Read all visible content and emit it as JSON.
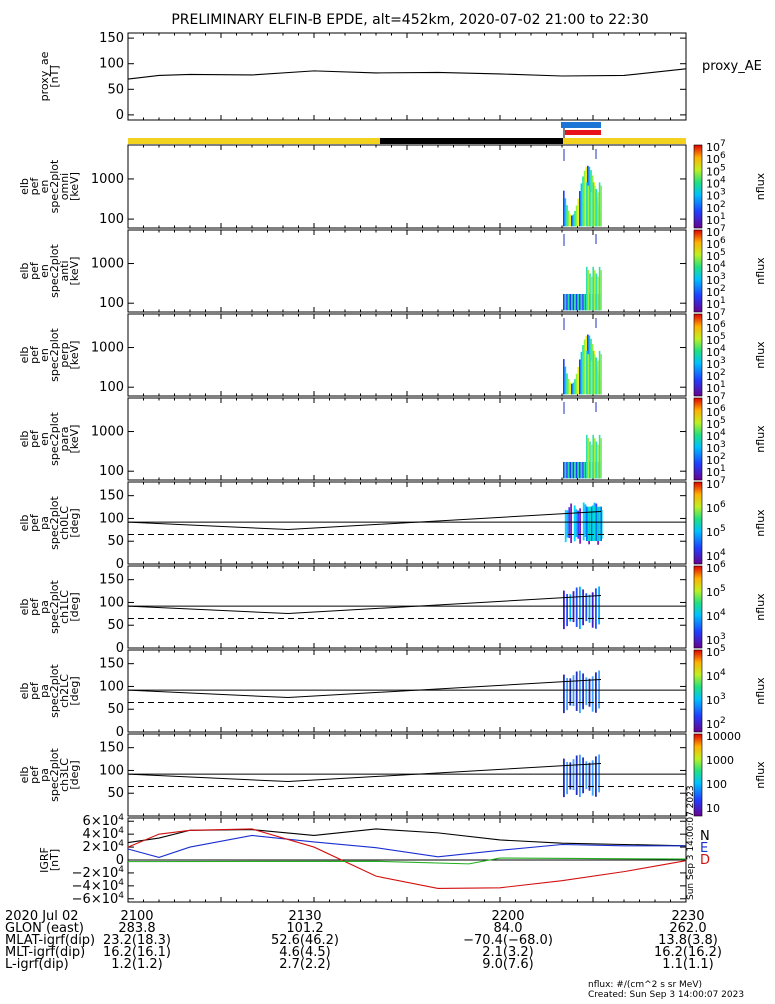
{
  "title": "PRELIMINARY ELFIN-B EPDE, alt=452km, 2020-07-02 21:00 to 22:30",
  "colors": {
    "yellow": "#f2d21e",
    "black": "#000000",
    "blue": "#1c74d4",
    "red": "#e8121a",
    "trace_red": "#d21010",
    "trace_blue": "#1a2fd0",
    "trace_green": "#22b020"
  },
  "chart_data": [
    {
      "type": "line",
      "panel": "proxy_ae",
      "ylabel": [
        "proxy_ae",
        "[nT]"
      ],
      "legend": "proxy_AE",
      "yticks": [
        "150",
        "100",
        "50",
        "0"
      ],
      "ylim": [
        -10,
        160
      ],
      "x": [
        0,
        5,
        10,
        20,
        30,
        40,
        50,
        60,
        70,
        80,
        90
      ],
      "values": [
        70,
        77,
        79,
        78,
        86,
        82,
        83,
        80,
        76,
        77,
        90
      ]
    },
    {
      "type": "heatmap",
      "panel": "en_omni",
      "ylabel": [
        "elb",
        "pef",
        "en",
        "spec2plot",
        "omni",
        "[keV]"
      ],
      "yticks": [
        "1000",
        "100"
      ],
      "yscale": "log",
      "ylim": [
        60,
        7000
      ],
      "colorbar": {
        "labels": [
          "10^7",
          "10^6",
          "10^5",
          "10^4",
          "10^3",
          "10^2",
          "10^1"
        ],
        "label": "nflux"
      }
    },
    {
      "type": "heatmap",
      "panel": "en_anti",
      "ylabel": [
        "elb",
        "pef",
        "en",
        "spec2plot",
        "anti",
        "[keV]"
      ],
      "yticks": [
        "1000",
        "100"
      ],
      "yscale": "log",
      "ylim": [
        60,
        7000
      ],
      "colorbar": {
        "labels": [
          "10^7",
          "10^6",
          "10^5",
          "10^4",
          "10^3",
          "10^2",
          "10^1"
        ],
        "label": "nflux"
      }
    },
    {
      "type": "heatmap",
      "panel": "en_perp",
      "ylabel": [
        "elb",
        "pef",
        "en",
        "spec2plot",
        "perp",
        "[keV]"
      ],
      "yticks": [
        "1000",
        "100"
      ],
      "yscale": "log",
      "ylim": [
        60,
        7000
      ],
      "colorbar": {
        "labels": [
          "10^7",
          "10^6",
          "10^5",
          "10^4",
          "10^3",
          "10^2",
          "10^1"
        ],
        "label": "nflux"
      }
    },
    {
      "type": "heatmap",
      "panel": "en_para",
      "ylabel": [
        "elb",
        "pef",
        "en",
        "spec2plot",
        "para",
        "[keV]"
      ],
      "yticks": [
        "1000",
        "100"
      ],
      "yscale": "log",
      "ylim": [
        60,
        7000
      ],
      "colorbar": {
        "labels": [
          "10^7",
          "10^6",
          "10^5",
          "10^4",
          "10^3",
          "10^2",
          "10^1"
        ],
        "label": "nflux"
      }
    },
    {
      "type": "heatmap",
      "panel": "pa_ch0",
      "ylabel": [
        "elb",
        "pef",
        "pa",
        "spec2plot",
        "ch0LC",
        "[deg]"
      ],
      "yticks": [
        "150",
        "100",
        "50",
        "0"
      ],
      "ylim": [
        0,
        180
      ],
      "colorbar": {
        "labels": [
          "10^7",
          "10^6",
          "10^5",
          "10^4"
        ],
        "label": "nflux"
      }
    },
    {
      "type": "heatmap",
      "panel": "pa_ch1",
      "ylabel": [
        "elb",
        "pef",
        "pa",
        "spec2plot",
        "ch1LC",
        "[deg]"
      ],
      "yticks": [
        "150",
        "100",
        "50",
        "0"
      ],
      "ylim": [
        0,
        180
      ],
      "colorbar": {
        "labels": [
          "10^6",
          "10^5",
          "10^4",
          "10^3"
        ],
        "label": "nflux"
      }
    },
    {
      "type": "heatmap",
      "panel": "pa_ch2",
      "ylabel": [
        "elb",
        "pef",
        "pa",
        "spec2plot",
        "ch2LC",
        "[deg]"
      ],
      "yticks": [
        "150",
        "100",
        "50",
        "0"
      ],
      "ylim": [
        0,
        180
      ],
      "colorbar": {
        "labels": [
          "10^5",
          "10^4",
          "10^3",
          "10^2"
        ],
        "label": "nflux"
      }
    },
    {
      "type": "heatmap",
      "panel": "pa_ch3",
      "ylabel": [
        "elb",
        "pef",
        "pa",
        "spec2plot",
        "ch3LC",
        "[deg]"
      ],
      "yticks": [
        "150",
        "100",
        "50"
      ],
      "ylim": [
        0,
        180
      ],
      "colorbar": {
        "labels": [
          "10000",
          "1000",
          "100",
          "10"
        ],
        "label": "nflux"
      }
    },
    {
      "type": "line",
      "panel": "igrf",
      "ylabel": [
        "IGRF",
        "[nT]"
      ],
      "yticks": [
        "6×10^4",
        "4×10^4",
        "2×10^4",
        "0",
        "−2×10^4",
        "−4×10^4",
        "−6×10^4"
      ],
      "ylim": [
        -65000,
        65000
      ],
      "legend": [
        "N",
        "E",
        "D"
      ],
      "x": [
        0,
        5,
        10,
        20,
        30,
        40,
        50,
        60,
        70,
        80,
        90
      ],
      "series": [
        {
          "name": "N",
          "values": [
            27000,
            34000,
            46000,
            47000,
            38000,
            48000,
            42000,
            31000,
            26000,
            24000,
            22000
          ]
        },
        {
          "name": "E",
          "values": [
            17000,
            4000,
            20000,
            38000,
            28000,
            19000,
            5000,
            15000,
            24000,
            22000,
            22000
          ]
        },
        {
          "name": "D",
          "values": [
            20000,
            40000,
            46000,
            48000,
            20000,
            -25000,
            -44000,
            -43000,
            -32000,
            -18000,
            -1000
          ]
        }
      ]
    }
  ],
  "x_axis": {
    "rows": [
      {
        "label": "2020 Jul 02",
        "values": [
          "2100",
          "2130",
          "2200",
          "2230"
        ]
      },
      {
        "label": "GLON (east)",
        "values": [
          "283.8",
          "101.2",
          "84.0",
          "262.0"
        ]
      },
      {
        "label": "MLAT-igrf(dip)",
        "values": [
          "23.2(18.3)",
          "52.6(46.2)",
          "−70.4(−68.0)",
          "13.8(3.8)"
        ]
      },
      {
        "label": "MLT-igrf(dip)",
        "values": [
          "16.2(16.1)",
          "4.6(4.5)",
          "2.1(3.2)",
          "16.2(16.2)"
        ]
      },
      {
        "label": "L-igrf(dip)",
        "values": [
          "1.2(1.2)",
          "2.7(2.2)",
          "9.0(7.6)",
          "1.1(1.1)"
        ]
      }
    ]
  },
  "side_stamp": "Sun Sep 3 14:00:07 2023",
  "footer": {
    "units": "nflux: #/(cm^2 s sr MeV)",
    "created": "Created: Sun Sep  3 14:00:07 2023"
  }
}
